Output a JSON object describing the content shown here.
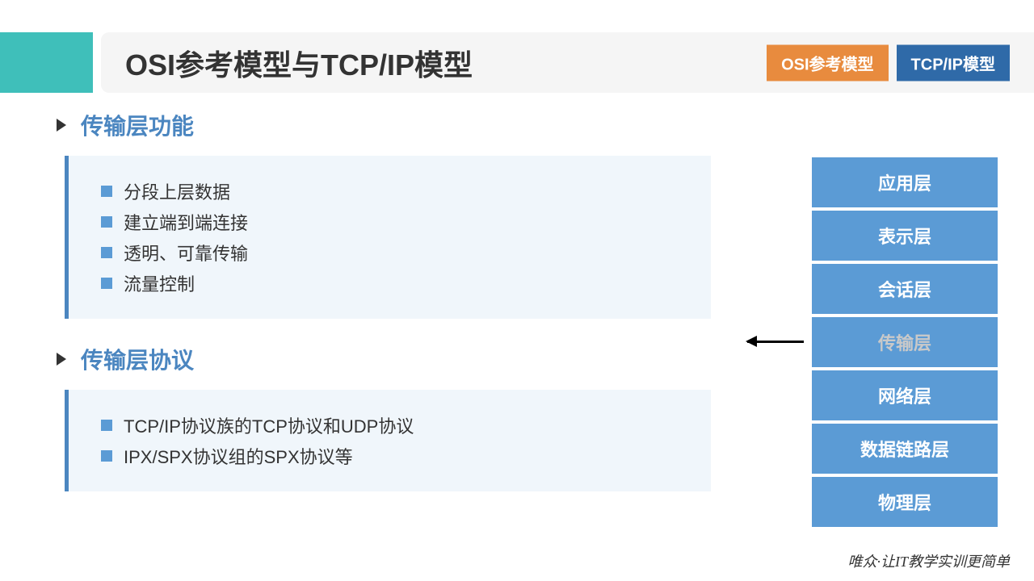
{
  "header": {
    "title": "OSI参考模型与TCP/IP模型",
    "accent_color": "#3fbfba",
    "badges": {
      "osi": {
        "label": "OSI参考模型",
        "bg": "#e88b3e"
      },
      "tcpip": {
        "label": "TCP/IP模型",
        "bg": "#2f6aa8"
      }
    }
  },
  "sections": {
    "functions": {
      "title": "传输层功能",
      "items": [
        "分段上层数据",
        "建立端到端连接",
        "透明、可靠传输",
        "流量控制"
      ]
    },
    "protocols": {
      "title": "传输层协议",
      "items": [
        "TCP/IP协议族的TCP协议和UDP协议",
        "IPX/SPX协议组的SPX协议等"
      ]
    }
  },
  "layers": {
    "list": [
      "应用层",
      "表示层",
      "会话层",
      "传输层",
      "网络层",
      "数据链路层",
      "物理层"
    ],
    "highlight_index": 3,
    "bg_color": "#5b9bd5",
    "text_color": "#ffffff",
    "highlight_text_color": "#c9c9c9"
  },
  "styling": {
    "section_title_color": "#4b86c0",
    "content_box_bg": "#f0f6fb",
    "content_box_border": "#4b86c0",
    "bullet_square_color": "#5b9bd5",
    "item_text_color": "#333333",
    "title_fontsize": 36,
    "section_title_fontsize": 28,
    "item_fontsize": 22,
    "layer_fontsize": 22
  },
  "footer": {
    "text": "唯众·让IT教学实训更简单"
  }
}
